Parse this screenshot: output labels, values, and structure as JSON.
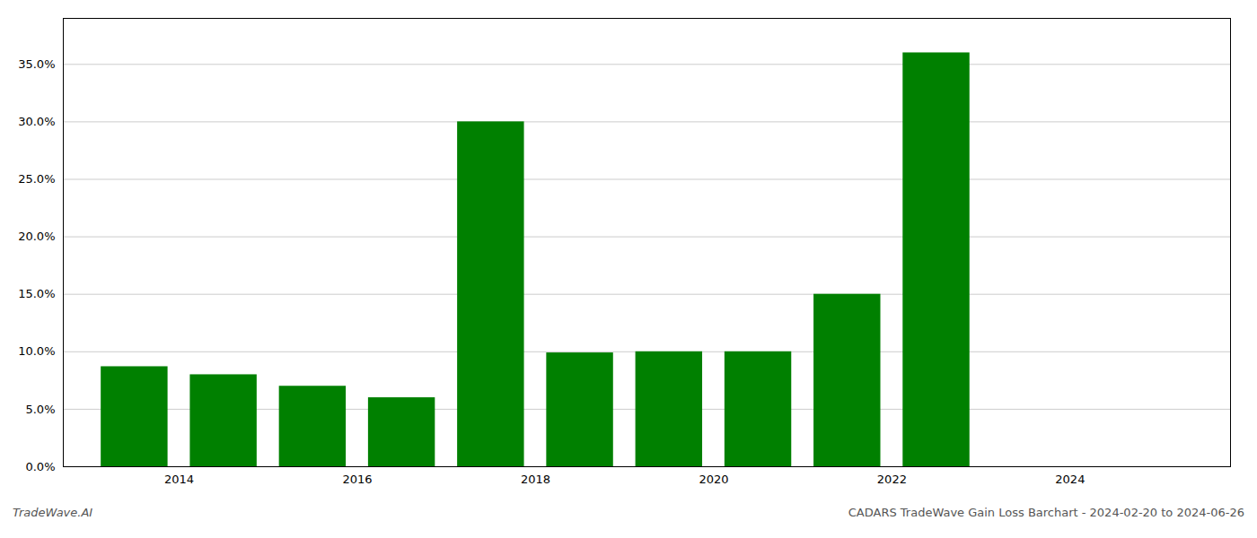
{
  "chart_data": {
    "type": "bar",
    "x": [
      2013,
      2014,
      2015,
      2016,
      2017,
      2018,
      2019,
      2020,
      2021,
      2022,
      2023
    ],
    "values": [
      0.087,
      0.08,
      0.07,
      0.06,
      0.3,
      0.099,
      0.1,
      0.1,
      0.15,
      0.36,
      0.0
    ],
    "color": "#008000",
    "xlim": [
      2012.2,
      2025.3
    ],
    "xticks": [
      {
        "value": 2013.5,
        "label": "2014"
      },
      {
        "value": 2015.5,
        "label": "2016"
      },
      {
        "value": 2017.5,
        "label": "2018"
      },
      {
        "value": 2019.5,
        "label": "2020"
      },
      {
        "value": 2021.5,
        "label": "2022"
      },
      {
        "value": 2023.5,
        "label": "2024"
      }
    ],
    "ylim": [
      0,
      0.39
    ],
    "yticks": [
      {
        "value": 0.0,
        "label": "0.0%"
      },
      {
        "value": 0.05,
        "label": "5.0%"
      },
      {
        "value": 0.1,
        "label": "10.0%"
      },
      {
        "value": 0.15,
        "label": "15.0%"
      },
      {
        "value": 0.2,
        "label": "20.0%"
      },
      {
        "value": 0.25,
        "label": "25.0%"
      },
      {
        "value": 0.3,
        "label": "30.0%"
      },
      {
        "value": 0.35,
        "label": "35.0%"
      }
    ],
    "grid": true,
    "footer_left": "TradeWave.AI",
    "footer_right": "CADARS TradeWave Gain Loss Barchart - 2024-02-20 to 2024-06-26"
  }
}
